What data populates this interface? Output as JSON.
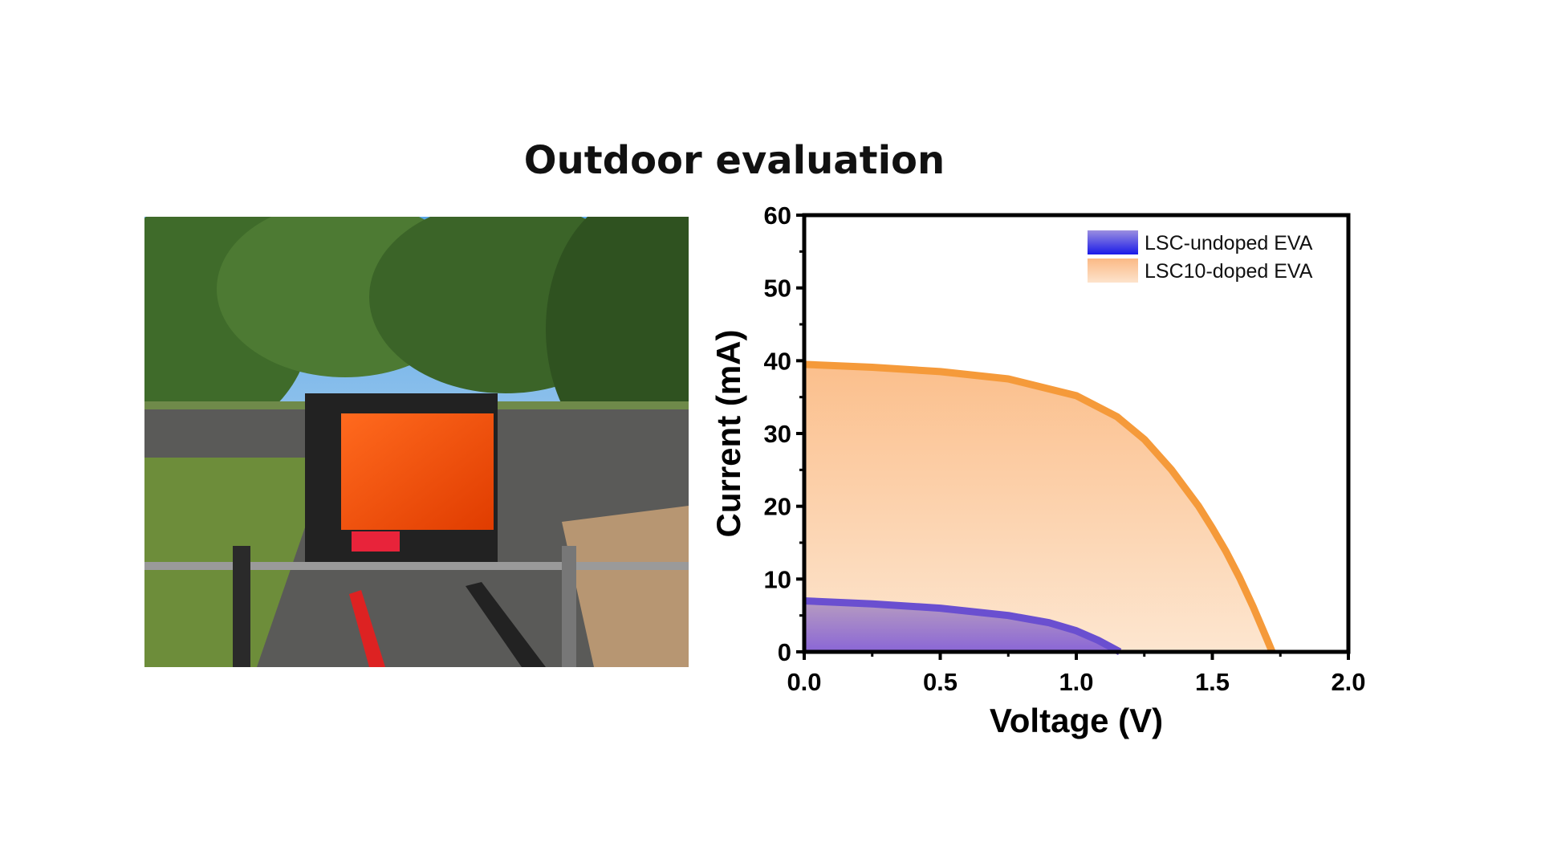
{
  "title": "Outdoor evaluation",
  "photo": {
    "icon": "outdoor-lsc-test-rig-photo"
  },
  "chart_data": {
    "type": "area",
    "title": "",
    "xlabel": "Voltage (V)",
    "ylabel": "Current (mA)",
    "xlim": [
      0,
      2.0
    ],
    "ylim": [
      0,
      60
    ],
    "xticks": [
      "0.0",
      "0.5",
      "1.0",
      "1.5",
      "2.0"
    ],
    "yticks": [
      "0",
      "10",
      "20",
      "30",
      "40",
      "50",
      "60"
    ],
    "grid": false,
    "legend_position": "top-right",
    "series": [
      {
        "name": "LSC-undoped EVA",
        "color": "#6a4fd0",
        "fill": "#8a6fd0",
        "x": [
          0,
          0.25,
          0.5,
          0.75,
          0.9,
          1.0,
          1.08,
          1.16
        ],
        "y": [
          7.0,
          6.6,
          6.0,
          5.0,
          4.0,
          2.9,
          1.6,
          0
        ]
      },
      {
        "name": "LSC10-doped EVA",
        "color": "#f59a3a",
        "fill": "#fcc89a",
        "x": [
          0,
          0.25,
          0.5,
          0.75,
          1.0,
          1.15,
          1.25,
          1.35,
          1.45,
          1.5,
          1.55,
          1.6,
          1.65,
          1.7,
          1.72
        ],
        "y": [
          39.5,
          39.1,
          38.5,
          37.5,
          35.2,
          32.3,
          29.2,
          25.0,
          20.0,
          17.0,
          13.8,
          10.2,
          6.2,
          1.8,
          0
        ]
      }
    ]
  }
}
